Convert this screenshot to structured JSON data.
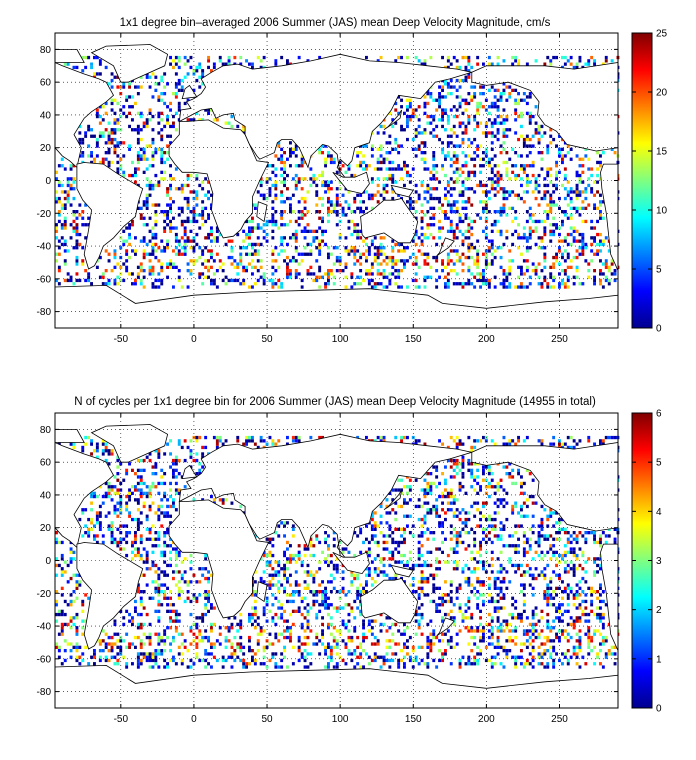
{
  "chart_data": [
    {
      "type": "heatmap",
      "title": "1x1 degree bin–averaged 2006 Summer (JAS) mean Deep Velocity Magnitude, cm/s",
      "xlabel": "",
      "ylabel": "",
      "xlim": [
        -95,
        290
      ],
      "ylim": [
        -90,
        90
      ],
      "x_ticks": [
        -50,
        0,
        50,
        100,
        150,
        200,
        250
      ],
      "y_ticks": [
        80,
        60,
        40,
        20,
        0,
        -20,
        -40,
        -60,
        -80
      ],
      "grid": true,
      "colormap": "jet",
      "colorbar": {
        "min": 0,
        "max": 25,
        "ticks": [
          0,
          5,
          10,
          15,
          20,
          25
        ]
      },
      "bg_value_mean": 3.2
    },
    {
      "type": "heatmap",
      "title": "N of cycles per 1x1 degree bin for 2006 Summer (JAS) mean Deep Velocity Magnitude (14955 in total)",
      "xlabel": "",
      "ylabel": "",
      "xlim": [
        -95,
        290
      ],
      "ylim": [
        -90,
        90
      ],
      "x_ticks": [
        -50,
        0,
        50,
        100,
        150,
        200,
        250
      ],
      "y_ticks": [
        80,
        60,
        40,
        20,
        0,
        -20,
        -40,
        -60,
        -80
      ],
      "grid": true,
      "colormap": "jet",
      "colorbar": {
        "min": 0,
        "max": 6,
        "ticks": [
          0,
          1,
          2,
          3,
          4,
          5,
          6
        ]
      },
      "bg_value_mean": 1.6
    }
  ]
}
